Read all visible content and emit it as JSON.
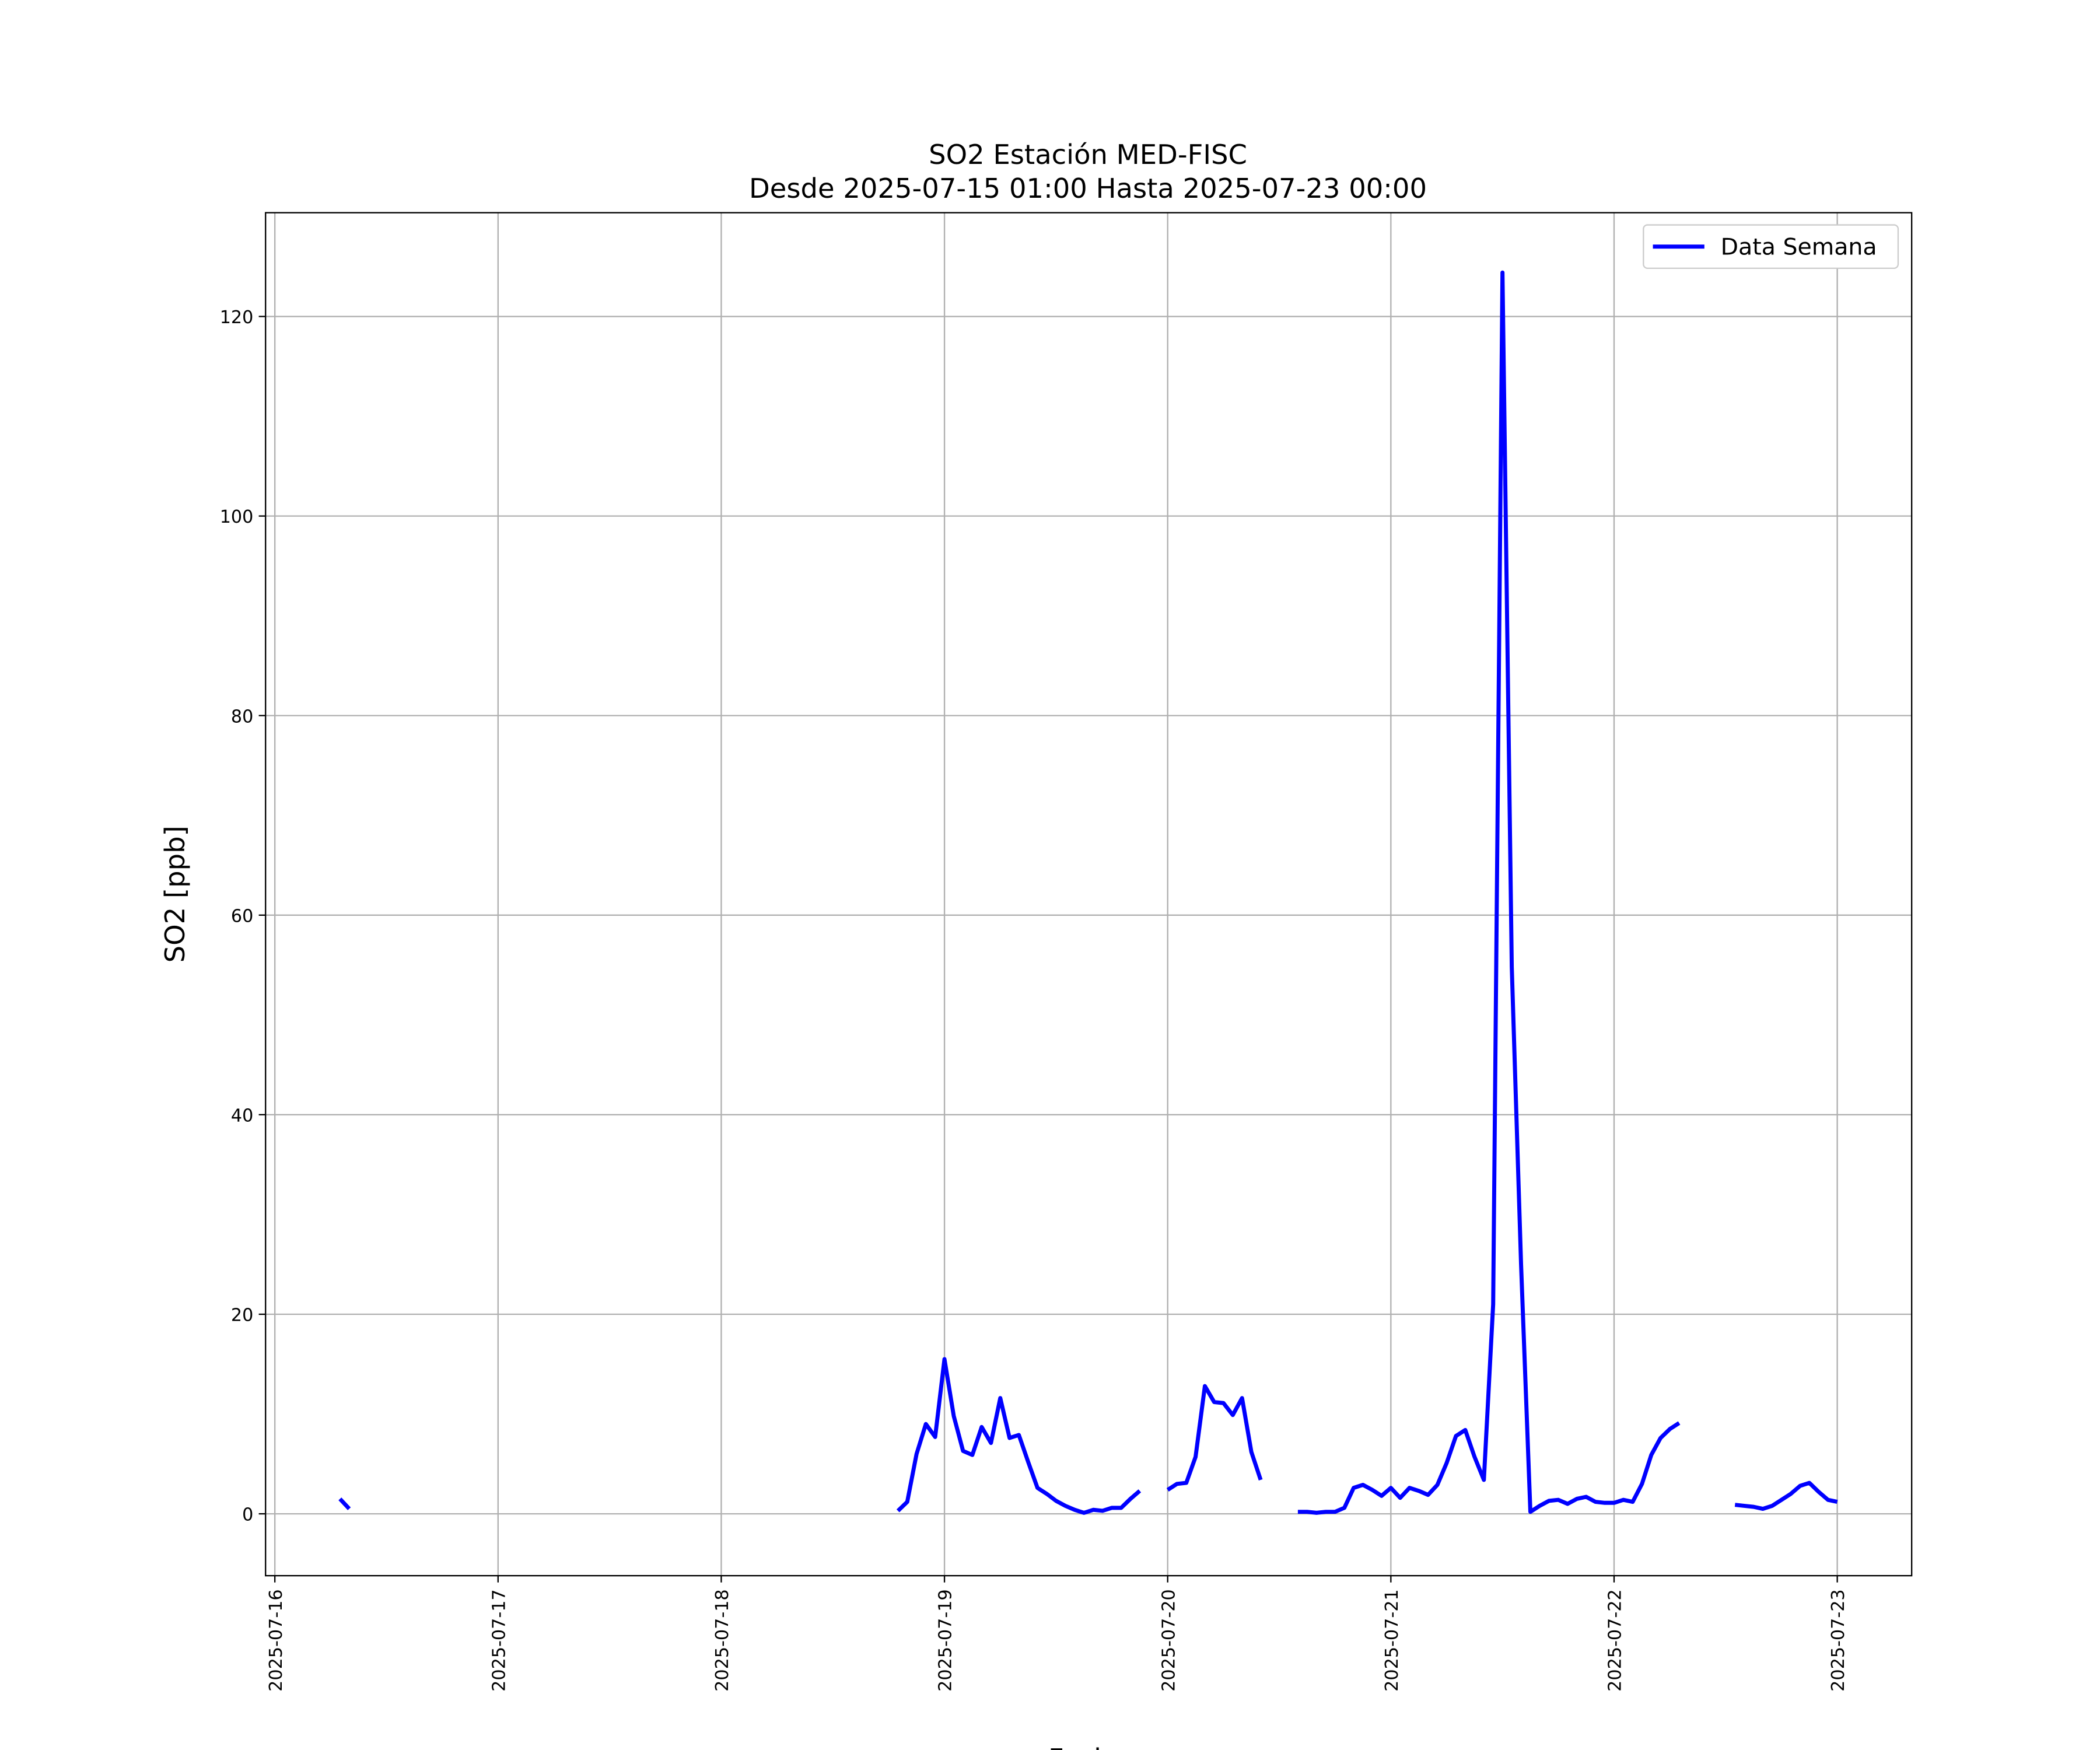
{
  "chart_data": {
    "type": "line",
    "title": "SO2 Estación MED-FISC",
    "subtitle": "Desde 2025-07-15 01:00 Hasta 2025-07-23 00:00",
    "x_label": "Fecha",
    "y_label": "SO2 [ppb]",
    "x": [
      "2025-07-16 07:00",
      "2025-07-16 08:00",
      "2025-07-16 09:00",
      "2025-07-18 19:00",
      "2025-07-18 20:00",
      "2025-07-18 21:00",
      "2025-07-18 22:00",
      "2025-07-18 23:00",
      "2025-07-19 00:00",
      "2025-07-19 01:00",
      "2025-07-19 02:00",
      "2025-07-19 03:00",
      "2025-07-19 04:00",
      "2025-07-19 05:00",
      "2025-07-19 06:00",
      "2025-07-19 07:00",
      "2025-07-19 08:00",
      "2025-07-19 09:00",
      "2025-07-19 10:00",
      "2025-07-19 11:00",
      "2025-07-19 12:00",
      "2025-07-19 13:00",
      "2025-07-19 14:00",
      "2025-07-19 15:00",
      "2025-07-19 16:00",
      "2025-07-19 17:00",
      "2025-07-19 18:00",
      "2025-07-19 19:00",
      "2025-07-19 20:00",
      "2025-07-19 21:00",
      "2025-07-19 22:00",
      "2025-07-20 00:00",
      "2025-07-20 01:00",
      "2025-07-20 02:00",
      "2025-07-20 03:00",
      "2025-07-20 04:00",
      "2025-07-20 05:00",
      "2025-07-20 06:00",
      "2025-07-20 07:00",
      "2025-07-20 08:00",
      "2025-07-20 09:00",
      "2025-07-20 10:00",
      "2025-07-20 11:00",
      "2025-07-20 14:00",
      "2025-07-20 15:00",
      "2025-07-20 16:00",
      "2025-07-20 17:00",
      "2025-07-20 18:00",
      "2025-07-20 19:00",
      "2025-07-20 20:00",
      "2025-07-20 21:00",
      "2025-07-20 22:00",
      "2025-07-20 23:00",
      "2025-07-21 00:00",
      "2025-07-21 01:00",
      "2025-07-21 02:00",
      "2025-07-21 03:00",
      "2025-07-21 04:00",
      "2025-07-21 05:00",
      "2025-07-21 06:00",
      "2025-07-21 07:00",
      "2025-07-21 08:00",
      "2025-07-21 09:00",
      "2025-07-21 10:00",
      "2025-07-21 11:00",
      "2025-07-21 12:00",
      "2025-07-21 13:00",
      "2025-07-21 14:00",
      "2025-07-21 15:00",
      "2025-07-21 16:00",
      "2025-07-21 17:00",
      "2025-07-21 18:00",
      "2025-07-21 19:00",
      "2025-07-21 20:00",
      "2025-07-21 21:00",
      "2025-07-21 22:00",
      "2025-07-21 23:00",
      "2025-07-22 00:00",
      "2025-07-22 01:00",
      "2025-07-22 02:00",
      "2025-07-22 03:00",
      "2025-07-22 04:00",
      "2025-07-22 05:00",
      "2025-07-22 06:00",
      "2025-07-22 07:00",
      "2025-07-22 08:00",
      "2025-07-22 13:00",
      "2025-07-22 14:00",
      "2025-07-22 15:00",
      "2025-07-22 16:00",
      "2025-07-22 17:00",
      "2025-07-22 18:00",
      "2025-07-22 19:00",
      "2025-07-22 20:00",
      "2025-07-22 21:00",
      "2025-07-22 22:00",
      "2025-07-22 23:00",
      "2025-07-23 00:00"
    ],
    "series": [
      {
        "name": "Data Semana",
        "color": "#0000ff",
        "values": [
          1.5,
          0.5,
          null,
          0.3,
          1.2,
          6,
          9,
          7.7,
          15.5,
          9.8,
          6.3,
          5.9,
          8.7,
          7.1,
          11.6,
          7.6,
          7.9,
          5.2,
          2.6,
          2,
          1.3,
          0.8,
          0.4,
          0.1,
          0.4,
          0.3,
          0.6,
          0.6,
          1.5,
          2.3,
          null,
          2.4,
          3,
          3.1,
          5.7,
          12.8,
          11.2,
          11.1,
          9.9,
          11.6,
          6.2,
          3.4,
          null,
          0.2,
          0.2,
          0.1,
          0.2,
          0.2,
          0.6,
          2.6,
          2.9,
          2.4,
          1.8,
          2.6,
          1.6,
          2.6,
          2.3,
          1.9,
          2.9,
          5.1,
          7.8,
          8.4,
          5.7,
          3.4,
          21,
          124.4,
          54.8,
          25,
          0.2,
          0.8,
          1.3,
          1.4,
          1,
          1.5,
          1.7,
          1.2,
          1.1,
          1.1,
          1.4,
          1.2,
          3,
          5.9,
          7.6,
          8.5,
          9.1,
          null,
          0.9,
          0.8,
          0.7,
          0.5,
          0.8,
          1.4,
          2,
          2.8,
          3.1,
          2.2,
          1.4,
          1.2
        ]
      }
    ],
    "xlim": [
      "2025-07-15 23:00",
      "2025-07-23 08:00"
    ],
    "xticks": [
      "2025-07-16",
      "2025-07-17",
      "2025-07-18",
      "2025-07-19",
      "2025-07-20",
      "2025-07-21",
      "2025-07-22",
      "2025-07-23"
    ],
    "ylim": [
      -6.2,
      130.4
    ],
    "yticks": [
      0,
      20,
      40,
      60,
      80,
      100,
      120
    ],
    "grid": true,
    "legend": "upper right"
  }
}
